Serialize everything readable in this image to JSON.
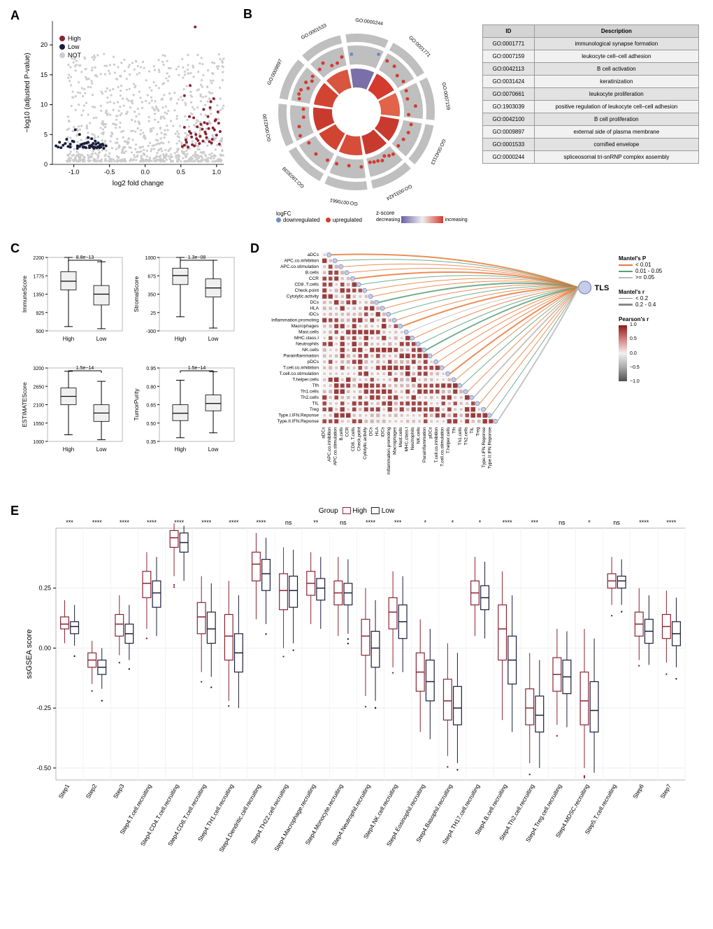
{
  "colors": {
    "high": "#8b2332",
    "low": "#1a1e3a",
    "not": "#cccccc",
    "upregulated": "#d43b2e",
    "downregulated": "#6b8fc4",
    "wedge_gradient_low": "#6b5fa5",
    "wedge_gradient_high": "#d43b2e",
    "box_fill": "#f0f0f0",
    "orange_line": "#e67a3a",
    "green_line": "#5a9e7a",
    "grey_line": "#bbbbbb",
    "pearson_high": "#8b1a1a",
    "pearson_low": "#505050",
    "grid": "#e0e0e0"
  },
  "panel_a": {
    "xlabel": "log2 fold change",
    "ylabel": "−log10 (adjusted P-value)",
    "xlim": [
      -1.3,
      1.1
    ],
    "ylim": [
      0,
      24
    ],
    "xticks": [
      -1.0,
      -0.5,
      0.0,
      0.5,
      1.0
    ],
    "yticks": [
      0,
      5,
      10,
      15,
      20
    ],
    "legend": [
      "High",
      "Low",
      "NOT"
    ],
    "high_points": [
      [
        0.55,
        3.2
      ],
      [
        0.62,
        5.5
      ],
      [
        0.68,
        7.8
      ],
      [
        0.72,
        4.3
      ],
      [
        0.78,
        6.7
      ],
      [
        0.82,
        9.2
      ],
      [
        0.85,
        5.1
      ],
      [
        0.55,
        11.5
      ],
      [
        0.88,
        8.0
      ],
      [
        0.9,
        3.8
      ],
      [
        0.92,
        10.5
      ],
      [
        0.95,
        6.1
      ],
      [
        0.98,
        7.3
      ],
      [
        1.0,
        4.9
      ],
      [
        1.02,
        8.8
      ],
      [
        0.7,
        23
      ],
      [
        0.6,
        2.9
      ],
      [
        0.65,
        4.6
      ],
      [
        0.76,
        3.5
      ],
      [
        0.8,
        5.9
      ],
      [
        0.87,
        6.8
      ],
      [
        0.94,
        4.2
      ],
      [
        1.05,
        5.5
      ],
      [
        0.63,
        13.2
      ],
      [
        0.58,
        3.7
      ],
      [
        0.71,
        5.0
      ],
      [
        0.83,
        7.0
      ],
      [
        0.91,
        9.5
      ],
      [
        0.96,
        11.0
      ],
      [
        0.74,
        4.0
      ],
      [
        0.66,
        3.3
      ],
      [
        0.52,
        3.0
      ],
      [
        0.55,
        6.2
      ],
      [
        0.62,
        8.0
      ],
      [
        0.69,
        3.1
      ],
      [
        0.77,
        4.7
      ],
      [
        0.84,
        5.4
      ],
      [
        0.89,
        6.0
      ],
      [
        0.93,
        3.6
      ],
      [
        0.99,
        7.5
      ],
      [
        0.57,
        4.1
      ],
      [
        0.64,
        5.2
      ],
      [
        0.73,
        6.3
      ],
      [
        0.81,
        3.9
      ],
      [
        0.86,
        4.5
      ],
      [
        0.97,
        5.8
      ],
      [
        1.03,
        6.9
      ],
      [
        1.04,
        3.4
      ]
    ],
    "low_points": [
      [
        -1.25,
        3.1
      ],
      [
        -1.18,
        2.8
      ],
      [
        -1.12,
        3.5
      ],
      [
        -1.05,
        2.9
      ],
      [
        -1.0,
        3.8
      ],
      [
        -0.95,
        2.7
      ],
      [
        -0.9,
        3.3
      ],
      [
        -0.98,
        5.8
      ],
      [
        -0.85,
        2.9
      ],
      [
        -0.82,
        3.6
      ],
      [
        -0.78,
        2.8
      ],
      [
        -0.75,
        3.2
      ],
      [
        -0.72,
        2.7
      ],
      [
        -0.7,
        3.9
      ],
      [
        -0.68,
        2.8
      ],
      [
        -0.92,
        5.0
      ],
      [
        -0.65,
        3.0
      ],
      [
        -0.62,
        2.9
      ],
      [
        -0.6,
        3.4
      ],
      [
        -0.58,
        2.7
      ],
      [
        -0.55,
        3.1
      ],
      [
        -1.2,
        3.7
      ],
      [
        -1.08,
        3.0
      ],
      [
        -0.8,
        4.5
      ],
      [
        -0.88,
        3.4
      ],
      [
        -0.83,
        2.8
      ],
      [
        -0.77,
        3.0
      ],
      [
        -0.73,
        3.5
      ],
      [
        -0.67,
        2.9
      ],
      [
        -0.63,
        3.3
      ],
      [
        -1.15,
        3.2
      ],
      [
        -1.1,
        4.2
      ],
      [
        -0.95,
        3.1
      ],
      [
        -0.87,
        2.9
      ],
      [
        -0.8,
        3.7
      ],
      [
        -0.74,
        3.0
      ],
      [
        -0.69,
        3.4
      ],
      [
        -0.64,
        2.8
      ],
      [
        -0.59,
        3.2
      ],
      [
        -1.02,
        3.9
      ],
      [
        -1.22,
        2.9
      ],
      [
        -1.05,
        3.4
      ],
      [
        -0.92,
        3.0
      ],
      [
        -0.85,
        3.5
      ],
      [
        -0.78,
        3.1
      ],
      [
        -0.71,
        2.9
      ],
      [
        -0.66,
        3.6
      ],
      [
        -0.75,
        4.3
      ]
    ]
  },
  "panel_b": {
    "go_ids": [
      "GO:0000244",
      "GO:0001771",
      "GO:0007159",
      "GO:0042113",
      "GO:0031424",
      "GO:0070661",
      "GO:1903039",
      "GO:0042100",
      "GO:0009897",
      "GO:0001533"
    ],
    "wedge_colors": [
      "#7b6fa8",
      "#d43b2e",
      "#e0634a",
      "#c93a2e",
      "#c93a2e",
      "#d64e3a",
      "#d24432",
      "#c93a2e",
      "#d24432",
      "#d85540"
    ],
    "table": [
      {
        "id": "GO:0001771",
        "desc": "immunological synapse formation"
      },
      {
        "id": "GO:0007159",
        "desc": "leukocyte cell–cell adhesion"
      },
      {
        "id": "GO:0042113",
        "desc": "B cell activation"
      },
      {
        "id": "GO:0031424",
        "desc": "keratinization"
      },
      {
        "id": "GO:0070661",
        "desc": "leukocyte proliferation"
      },
      {
        "id": "GO:1903039",
        "desc": "positive regulation of leukocyte cell–cell adhesion"
      },
      {
        "id": "GO:0042100",
        "desc": "B cell proliferation"
      },
      {
        "id": "GO:0009897",
        "desc": "external side of plasma membrane"
      },
      {
        "id": "GO:0001533",
        "desc": "cornified envelope"
      },
      {
        "id": "GO:0000244",
        "desc": "spliceosomal tri-snRNP complex assembly"
      }
    ],
    "legend_logfc": "logFC",
    "legend_down": "downregulated",
    "legend_up": "upregulated",
    "legend_zscore": "z-score",
    "legend_dec": "decreasing",
    "legend_inc": "increasing"
  },
  "panel_c": {
    "plots": [
      {
        "title": "ImmuneScore",
        "pval": "8.8e−13",
        "ylim": [
          500,
          2200
        ],
        "high": {
          "q1": 1450,
          "med": 1650,
          "q3": 1870,
          "w1": 600,
          "w2": 2200
        },
        "low": {
          "q1": 1100,
          "med": 1350,
          "q3": 1550,
          "w1": 550,
          "w2": 2100
        }
      },
      {
        "title": "ESTIMATEScore",
        "pval": "1.5e−14",
        "ylim": [
          1000,
          3200
        ],
        "high": {
          "q1": 2100,
          "med": 2350,
          "q3": 2600,
          "w1": 1200,
          "w2": 3100
        },
        "low": {
          "q1": 1600,
          "med": 1850,
          "q3": 2100,
          "w1": 1050,
          "w2": 2800
        }
      },
      {
        "title": "StromalScore",
        "pval": "1.3e−08",
        "ylim": [
          -300,
          1000
        ],
        "high": {
          "q1": 520,
          "med": 680,
          "q3": 810,
          "w1": -50,
          "w2": 1000
        },
        "low": {
          "q1": 300,
          "med": 460,
          "q3": 620,
          "w1": -250,
          "w2": 950
        }
      },
      {
        "title": "TumorPurity",
        "pval": "1.5e−14",
        "ylim": [
          0.35,
          0.95
        ],
        "high": {
          "q1": 0.52,
          "med": 0.58,
          "q3": 0.65,
          "w1": 0.38,
          "w2": 0.85
        },
        "low": {
          "q1": 0.6,
          "med": 0.66,
          "q3": 0.73,
          "w1": 0.42,
          "w2": 0.92
        }
      }
    ],
    "xlabels": [
      "High",
      "Low"
    ]
  },
  "panel_d": {
    "node_label": "TLS",
    "mantel_p_title": "Mantel's P",
    "mantel_p": [
      "< 0.01",
      "0.01 - 0.05",
      ">= 0.05"
    ],
    "mantel_r_title": "Mantel's r",
    "mantel_r": [
      "< 0.2",
      "0.2 - 0.4"
    ],
    "pearson_title": "Pearson's r",
    "pearson_labels": [
      "1.0",
      "0.5",
      "0.0",
      "−0.5",
      "−1.0"
    ],
    "cells": [
      "aDCs",
      "APC.co.inhibition",
      "APC.co.stimulation",
      "B.cells",
      "CCR",
      "CD8..T.cells",
      "Check.point",
      "Cytolytic.activity",
      "DCs",
      "HLA",
      "iDCs",
      "Inflammation.promoting",
      "Macrophages",
      "Mast.cells",
      "MHC.class.I",
      "Neutrophils",
      "NK.cells",
      "Parainflammation",
      "pDCs",
      "T.cell.co.inhibition",
      "T.cell.co.stimulation",
      "T.helper.cells",
      "Tfh",
      "Th1.cells",
      "Th2.cells",
      "TIL",
      "Treg",
      "Type.I.IFN.Reponse",
      "Type.II.IFN.Reponse"
    ],
    "line_colors_pattern": [
      "o",
      "g",
      "o",
      "o",
      "o",
      "g",
      "o",
      "o",
      "g",
      "o",
      "g",
      "o",
      "o",
      "x",
      "o",
      "g",
      "g",
      "o",
      "o",
      "o",
      "o",
      "o",
      "g",
      "o",
      "x",
      "o",
      "o",
      "g",
      "x"
    ]
  },
  "panel_e": {
    "ylabel": "ssGSEA score",
    "group_label": "Group",
    "groups": [
      "High",
      "Low"
    ],
    "ylim": [
      -0.55,
      0.5
    ],
    "yticks": [
      -0.5,
      -0.25,
      0.0,
      0.25
    ],
    "steps": [
      {
        "name": "Step1",
        "sig": "***",
        "high": {
          "q1": 0.08,
          "med": 0.1,
          "q3": 0.13,
          "w1": 0.02,
          "w2": 0.2
        },
        "low": {
          "q1": 0.06,
          "med": 0.09,
          "q3": 0.11,
          "w1": 0.01,
          "w2": 0.18
        }
      },
      {
        "name": "Step2",
        "sig": "****",
        "high": {
          "q1": -0.08,
          "med": -0.05,
          "q3": -0.02,
          "w1": -0.15,
          "w2": 0.03
        },
        "low": {
          "q1": -0.11,
          "med": -0.08,
          "q3": -0.05,
          "w1": -0.17,
          "w2": 0.0
        }
      },
      {
        "name": "Step3",
        "sig": "****",
        "high": {
          "q1": 0.05,
          "med": 0.1,
          "q3": 0.14,
          "w1": -0.03,
          "w2": 0.22
        },
        "low": {
          "q1": 0.02,
          "med": 0.06,
          "q3": 0.1,
          "w1": -0.05,
          "w2": 0.18
        }
      },
      {
        "name": "Step4.T.cell.recruiting",
        "sig": "****",
        "high": {
          "q1": 0.21,
          "med": 0.27,
          "q3": 0.32,
          "w1": 0.08,
          "w2": 0.4
        },
        "low": {
          "q1": 0.17,
          "med": 0.23,
          "q3": 0.28,
          "w1": 0.05,
          "w2": 0.38
        }
      },
      {
        "name": "Step4.CD4.T.cell.recruiting",
        "sig": "****",
        "high": {
          "q1": 0.42,
          "med": 0.46,
          "q3": 0.49,
          "w1": 0.3,
          "w2": 0.52
        },
        "low": {
          "q1": 0.4,
          "med": 0.44,
          "q3": 0.48,
          "w1": 0.28,
          "w2": 0.51
        }
      },
      {
        "name": "Step4.CD8.T.cell.recruiting",
        "sig": "****",
        "high": {
          "q1": 0.06,
          "med": 0.13,
          "q3": 0.19,
          "w1": -0.1,
          "w2": 0.3
        },
        "low": {
          "q1": 0.02,
          "med": 0.08,
          "q3": 0.15,
          "w1": -0.12,
          "w2": 0.27
        }
      },
      {
        "name": "Step4.TH1.cell.recruiting",
        "sig": "****",
        "high": {
          "q1": -0.05,
          "med": 0.05,
          "q3": 0.14,
          "w1": -0.22,
          "w2": 0.28
        },
        "low": {
          "q1": -0.1,
          "med": -0.02,
          "q3": 0.06,
          "w1": -0.25,
          "w2": 0.22
        }
      },
      {
        "name": "Step4.Dendritic.cell.recruiting",
        "sig": "****",
        "high": {
          "q1": 0.28,
          "med": 0.35,
          "q3": 0.4,
          "w1": 0.12,
          "w2": 0.48
        },
        "low": {
          "q1": 0.24,
          "med": 0.31,
          "q3": 0.37,
          "w1": 0.1,
          "w2": 0.46
        }
      },
      {
        "name": "Step4.TH22.cell.recruiting",
        "sig": "ns",
        "high": {
          "q1": 0.16,
          "med": 0.24,
          "q3": 0.31,
          "w1": 0.0,
          "w2": 0.42
        },
        "low": {
          "q1": 0.17,
          "med": 0.24,
          "q3": 0.3,
          "w1": 0.02,
          "w2": 0.41
        }
      },
      {
        "name": "Step4.Macrophage.recruiting",
        "sig": "**",
        "high": {
          "q1": 0.22,
          "med": 0.27,
          "q3": 0.32,
          "w1": 0.1,
          "w2": 0.4
        },
        "low": {
          "q1": 0.2,
          "med": 0.25,
          "q3": 0.29,
          "w1": 0.08,
          "w2": 0.38
        }
      },
      {
        "name": "Step4.Monocyte.recruiting",
        "sig": "ns",
        "high": {
          "q1": 0.18,
          "med": 0.23,
          "q3": 0.28,
          "w1": 0.05,
          "w2": 0.38
        },
        "low": {
          "q1": 0.18,
          "med": 0.23,
          "q3": 0.27,
          "w1": 0.06,
          "w2": 0.37
        }
      },
      {
        "name": "Step4.Neutrophil.recruiting",
        "sig": "****",
        "high": {
          "q1": -0.03,
          "med": 0.05,
          "q3": 0.12,
          "w1": -0.2,
          "w2": 0.25
        },
        "low": {
          "q1": -0.08,
          "med": 0.0,
          "q3": 0.07,
          "w1": -0.22,
          "w2": 0.2
        }
      },
      {
        "name": "Step4.NK.cell.recruiting",
        "sig": "***",
        "high": {
          "q1": 0.08,
          "med": 0.15,
          "q3": 0.21,
          "w1": -0.08,
          "w2": 0.32
        },
        "low": {
          "q1": 0.04,
          "med": 0.11,
          "q3": 0.18,
          "w1": -0.1,
          "w2": 0.3
        }
      },
      {
        "name": "Step4.Eosinophil.recruiting",
        "sig": "*",
        "high": {
          "q1": -0.18,
          "med": -0.1,
          "q3": -0.02,
          "w1": -0.35,
          "w2": 0.12
        },
        "low": {
          "q1": -0.22,
          "med": -0.14,
          "q3": -0.05,
          "w1": -0.38,
          "w2": 0.08
        }
      },
      {
        "name": "Step4.Basophil.recruiting",
        "sig": "*",
        "high": {
          "q1": -0.3,
          "med": -0.22,
          "q3": -0.13,
          "w1": -0.45,
          "w2": 0.02
        },
        "low": {
          "q1": -0.32,
          "med": -0.25,
          "q3": -0.16,
          "w1": -0.48,
          "w2": -0.02
        }
      },
      {
        "name": "Step4.TH17.cell.recruiting",
        "sig": "*",
        "high": {
          "q1": 0.18,
          "med": 0.23,
          "q3": 0.28,
          "w1": 0.05,
          "w2": 0.38
        },
        "low": {
          "q1": 0.16,
          "med": 0.21,
          "q3": 0.26,
          "w1": 0.04,
          "w2": 0.36
        }
      },
      {
        "name": "Step4.B.cell.recruiting",
        "sig": "****",
        "high": {
          "q1": -0.05,
          "med": 0.08,
          "q3": 0.18,
          "w1": -0.3,
          "w2": 0.32
        },
        "low": {
          "q1": -0.15,
          "med": -0.05,
          "q3": 0.05,
          "w1": -0.35,
          "w2": 0.22
        }
      },
      {
        "name": "Step4.Th2.cell.recruiting",
        "sig": "***",
        "high": {
          "q1": -0.32,
          "med": -0.25,
          "q3": -0.17,
          "w1": -0.48,
          "w2": -0.02
        },
        "low": {
          "q1": -0.35,
          "med": -0.28,
          "q3": -0.2,
          "w1": -0.5,
          "w2": -0.05
        }
      },
      {
        "name": "Step4.Treg.cell.recruiting",
        "sig": "ns",
        "high": {
          "q1": -0.18,
          "med": -0.11,
          "q3": -0.04,
          "w1": -0.32,
          "w2": 0.08
        },
        "low": {
          "q1": -0.19,
          "med": -0.12,
          "q3": -0.05,
          "w1": -0.33,
          "w2": 0.07
        }
      },
      {
        "name": "Step4.MDSC.recruiting",
        "sig": "*",
        "high": {
          "q1": -0.32,
          "med": -0.22,
          "q3": -0.1,
          "w1": -0.5,
          "w2": 0.08
        },
        "low": {
          "q1": -0.35,
          "med": -0.26,
          "q3": -0.14,
          "w1": -0.52,
          "w2": 0.04
        }
      },
      {
        "name": "Step5.T.cell.recruiting",
        "sig": "ns",
        "high": {
          "q1": 0.25,
          "med": 0.28,
          "q3": 0.31,
          "w1": 0.18,
          "w2": 0.38
        },
        "low": {
          "q1": 0.25,
          "med": 0.28,
          "q3": 0.3,
          "w1": 0.18,
          "w2": 0.37
        }
      },
      {
        "name": "Step6",
        "sig": "****",
        "high": {
          "q1": 0.05,
          "med": 0.1,
          "q3": 0.15,
          "w1": -0.05,
          "w2": 0.25
        },
        "low": {
          "q1": 0.02,
          "med": 0.07,
          "q3": 0.12,
          "w1": -0.07,
          "w2": 0.22
        }
      },
      {
        "name": "Step7",
        "sig": "****",
        "high": {
          "q1": 0.04,
          "med": 0.09,
          "q3": 0.14,
          "w1": -0.06,
          "w2": 0.24
        },
        "low": {
          "q1": 0.01,
          "med": 0.06,
          "q3": 0.11,
          "w1": -0.08,
          "w2": 0.21
        }
      }
    ]
  }
}
